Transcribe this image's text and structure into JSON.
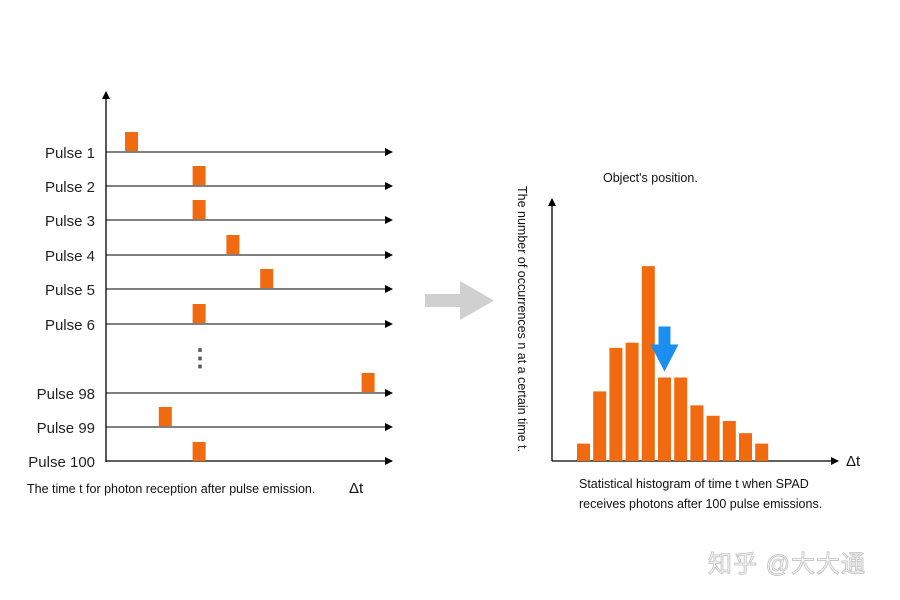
{
  "colors": {
    "bar": "#f26a10",
    "arrow_marker": "#1a8ff0",
    "axis": "#000000",
    "transition_arrow": "#d0d0d0",
    "ellipsis": "#555555"
  },
  "chart_data": [
    {
      "type": "scatter",
      "title": "",
      "caption": "The time t for photon reception after pulse emission.",
      "xlabel": "Δt",
      "rows": [
        {
          "label": "Pulse 1",
          "t": 1
        },
        {
          "label": "Pulse 2",
          "t": 3
        },
        {
          "label": "Pulse 3",
          "t": 3
        },
        {
          "label": "Pulse 4",
          "t": 4
        },
        {
          "label": "Pulse 5",
          "t": 5
        },
        {
          "label": "Pulse 6",
          "t": 3
        },
        {
          "label": "Pulse 98",
          "t": 8
        },
        {
          "label": "Pulse 99",
          "t": 2
        },
        {
          "label": "Pulse 100",
          "t": 3
        }
      ],
      "ellipsis": "⋮"
    },
    {
      "type": "bar",
      "ylabel": "The number of occurrences n at a certain time t.",
      "xlabel": "Δt",
      "caption_lines": [
        "Statistical histogram of time t when SPAD",
        "receives photons after 100 pulse emissions."
      ],
      "annotation": "Object's position.",
      "annotation_index": 5,
      "values": [
        1,
        4,
        6.5,
        6.8,
        11.2,
        4.8,
        4.8,
        3.2,
        2.6,
        2.3,
        1.6,
        1
      ],
      "ylim": [
        0,
        15
      ]
    }
  ],
  "watermark": "知乎 @大大通"
}
